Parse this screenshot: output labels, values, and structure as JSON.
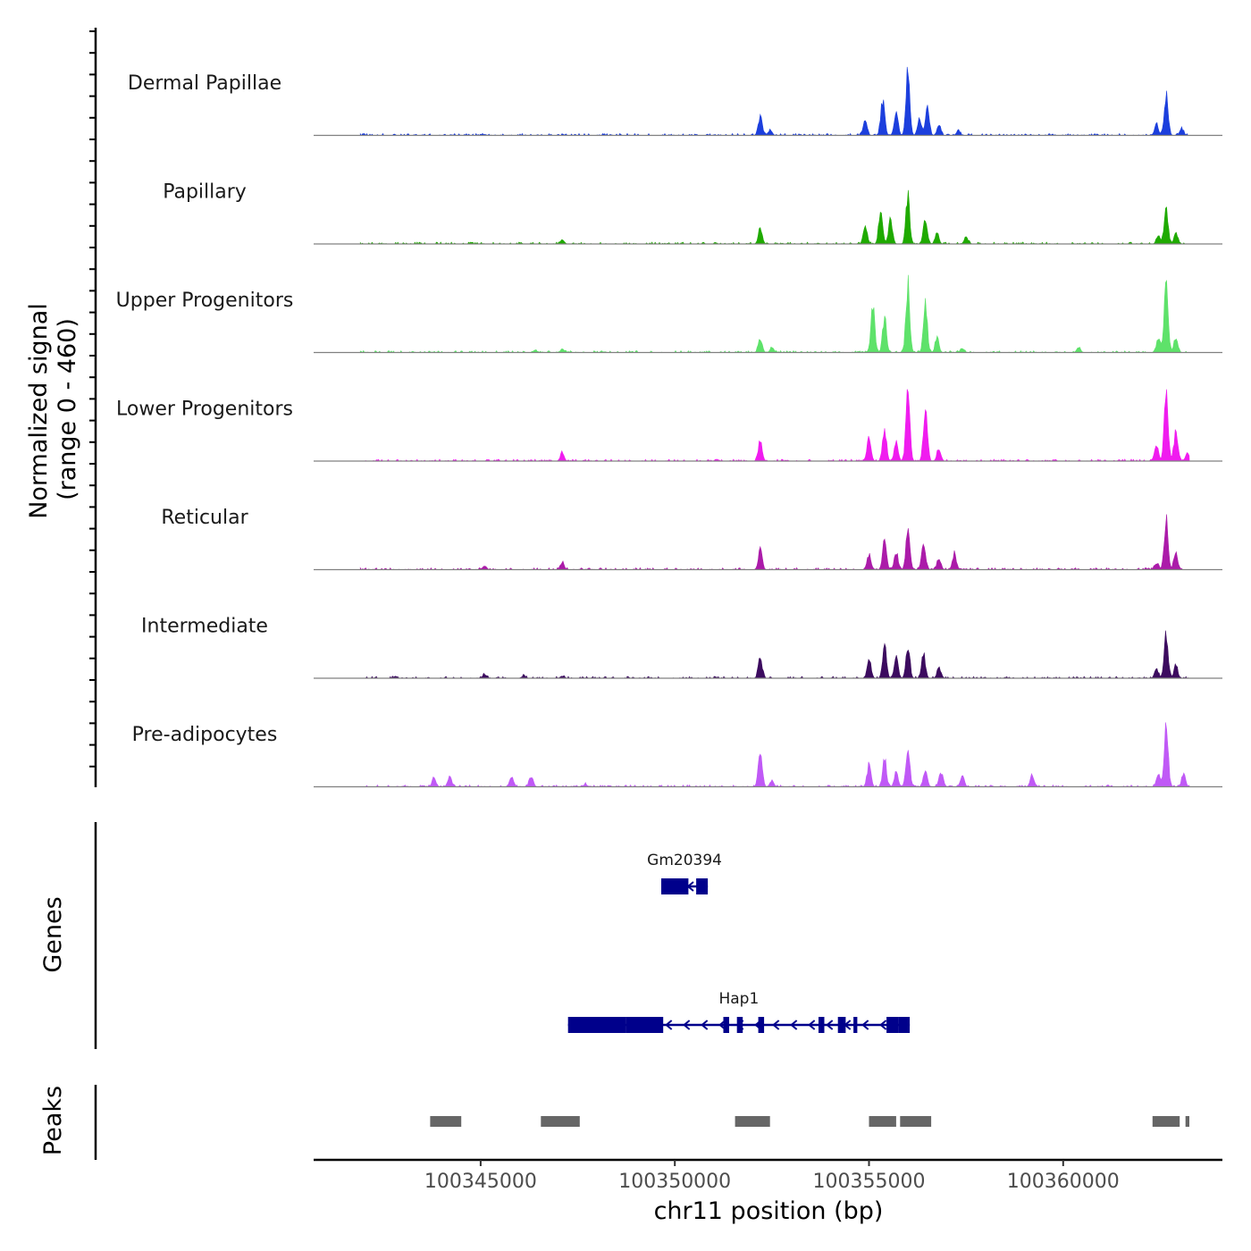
{
  "chart_data": {
    "type": "area",
    "title": "",
    "ylabel": "Normalized signal",
    "ylabel_range": "(range 0 - 460)",
    "xlabel": "chr11 position (bp)",
    "xlim": [
      100340700,
      100364100
    ],
    "ylim": [
      0,
      460
    ],
    "x_ticks": [
      100345000,
      100350000,
      100355000,
      100360000
    ],
    "x_tick_labels": [
      "100345000",
      "100350000",
      "100355000",
      "100360000"
    ],
    "signal_extent": [
      100341900,
      100363250
    ],
    "tracks": [
      {
        "name": "Dermal Papillae",
        "color": "#1c3fdd",
        "peaks": [
          [
            100345100,
            6
          ],
          [
            100352200,
            120
          ],
          [
            100352450,
            30
          ],
          [
            100354900,
            95
          ],
          [
            100355350,
            230
          ],
          [
            100355700,
            140
          ],
          [
            100356000,
            420
          ],
          [
            100356300,
            110
          ],
          [
            100356500,
            185
          ],
          [
            100356800,
            60
          ],
          [
            100357300,
            25
          ],
          [
            100362400,
            70
          ],
          [
            100362650,
            260
          ],
          [
            100363050,
            45
          ]
        ]
      },
      {
        "name": "Papillary",
        "color": "#1faa00",
        "peaks": [
          [
            100347100,
            25
          ],
          [
            100352200,
            100
          ],
          [
            100354900,
            125
          ],
          [
            100355300,
            200
          ],
          [
            100355550,
            160
          ],
          [
            100356000,
            300
          ],
          [
            100356450,
            170
          ],
          [
            100356750,
            70
          ],
          [
            100357500,
            40
          ],
          [
            100362450,
            50
          ],
          [
            100362650,
            230
          ],
          [
            100362900,
            70
          ]
        ]
      },
      {
        "name": "Upper Progenitors",
        "color": "#5ee26a",
        "peaks": [
          [
            100346400,
            15
          ],
          [
            100347100,
            20
          ],
          [
            100352200,
            90
          ],
          [
            100352500,
            30
          ],
          [
            100355100,
            290
          ],
          [
            100355400,
            220
          ],
          [
            100356000,
            430
          ],
          [
            100356450,
            320
          ],
          [
            100356750,
            90
          ],
          [
            100357400,
            30
          ],
          [
            100360400,
            30
          ],
          [
            100362450,
            90
          ],
          [
            100362650,
            430
          ],
          [
            100362900,
            100
          ]
        ]
      },
      {
        "name": "Lower Progenitors",
        "color": "#f01cef",
        "peaks": [
          [
            100347100,
            50
          ],
          [
            100352200,
            140
          ],
          [
            100355000,
            150
          ],
          [
            100355400,
            200
          ],
          [
            100355700,
            120
          ],
          [
            100356000,
            500
          ],
          [
            100356450,
            350
          ],
          [
            100356800,
            80
          ],
          [
            100362400,
            110
          ],
          [
            100362650,
            440
          ],
          [
            100362900,
            180
          ],
          [
            100363200,
            50
          ]
        ]
      },
      {
        "name": "Reticular",
        "color": "#ab1ba9",
        "peaks": [
          [
            100345100,
            25
          ],
          [
            100347100,
            45
          ],
          [
            100352200,
            120
          ],
          [
            100355000,
            100
          ],
          [
            100355400,
            180
          ],
          [
            100355700,
            110
          ],
          [
            100356000,
            280
          ],
          [
            100356400,
            175
          ],
          [
            100356800,
            70
          ],
          [
            100357200,
            100
          ],
          [
            100362400,
            40
          ],
          [
            100362650,
            320
          ],
          [
            100362900,
            100
          ]
        ]
      },
      {
        "name": "Intermediate",
        "color": "#3c0b5f",
        "peaks": [
          [
            100342800,
            12
          ],
          [
            100345100,
            25
          ],
          [
            100346100,
            12
          ],
          [
            100347100,
            15
          ],
          [
            100352200,
            130
          ],
          [
            100355000,
            110
          ],
          [
            100355400,
            210
          ],
          [
            100355700,
            130
          ],
          [
            100356000,
            200
          ],
          [
            100356400,
            150
          ],
          [
            100356800,
            60
          ],
          [
            100362400,
            60
          ],
          [
            100362650,
            270
          ],
          [
            100362900,
            80
          ]
        ]
      },
      {
        "name": "Pre-adipocytes",
        "color": "#c059f6",
        "peaks": [
          [
            100343800,
            60
          ],
          [
            100344200,
            60
          ],
          [
            100345800,
            60
          ],
          [
            100346300,
            70
          ],
          [
            100347700,
            15
          ],
          [
            100352200,
            240
          ],
          [
            100352500,
            40
          ],
          [
            100355000,
            140
          ],
          [
            100355400,
            170
          ],
          [
            100355700,
            90
          ],
          [
            100356000,
            270
          ],
          [
            100356450,
            110
          ],
          [
            100356850,
            90
          ],
          [
            100357400,
            70
          ],
          [
            100359200,
            70
          ],
          [
            100362450,
            80
          ],
          [
            100362650,
            400
          ],
          [
            100363100,
            80
          ]
        ]
      }
    ],
    "genes_label": "Genes",
    "genes": [
      {
        "name": "Gm20394",
        "start": 100349650,
        "end": 100350850,
        "strand": "-",
        "exons": [
          [
            100349650,
            100350350
          ],
          [
            100350550,
            100350850
          ]
        ]
      },
      {
        "name": "Hap1",
        "start": 100347250,
        "end": 100356050,
        "strand": "-",
        "exons": [
          [
            100347250,
            100348750
          ],
          [
            100348750,
            100349700
          ],
          [
            100351250,
            100351400
          ],
          [
            100351600,
            100351750
          ],
          [
            100352150,
            100352300
          ],
          [
            100353700,
            100353850
          ],
          [
            100354200,
            100354400
          ],
          [
            100354600,
            100354700
          ],
          [
            100355450,
            100355750
          ],
          [
            100355750,
            100356050
          ]
        ]
      }
    ],
    "peaks_label": "Peaks",
    "peak_regions": [
      [
        100343700,
        100344500
      ],
      [
        100346550,
        100347550
      ],
      [
        100351550,
        100352450
      ],
      [
        100355000,
        100355700
      ],
      [
        100355800,
        100356600
      ],
      [
        100362300,
        100363000
      ],
      [
        100363150,
        100363250
      ]
    ]
  }
}
